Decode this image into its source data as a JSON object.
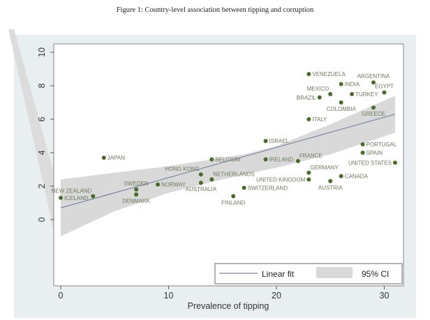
{
  "chart_data": {
    "type": "scatter",
    "title": "Figure 1: Country-level association between tipping and corruption",
    "xlabel": "Prevalence of tipping",
    "ylabel": "",
    "xlim": [
      -0.7,
      31.8
    ],
    "ylim": [
      -4,
      10.5
    ],
    "xticks": [
      0,
      10,
      20,
      30
    ],
    "yticks": [
      0,
      2,
      4,
      6,
      8,
      10
    ],
    "grid": false,
    "legend_position": "bottom-right",
    "legend": [
      {
        "label": "Linear fit",
        "kind": "line"
      },
      {
        "label": "95% CI",
        "kind": "band"
      }
    ],
    "colors": {
      "marker": "#4b6b2a",
      "label": "#6b7a5c",
      "fit": "#5b6a8f",
      "band": "#d9d9d9",
      "background": "#e9eff1"
    },
    "points": [
      {
        "name": "ICELAND",
        "x": 0,
        "y": 1.3,
        "label_position": "right"
      },
      {
        "name": "NEW ZEALAND",
        "x": 3,
        "y": 1.4,
        "label_position": "upper-left"
      },
      {
        "name": "JAPAN",
        "x": 4,
        "y": 3.7,
        "label_position": "right"
      },
      {
        "name": "SWEDEN",
        "x": 7,
        "y": 1.8,
        "label_position": "above"
      },
      {
        "name": "DENMARK",
        "x": 7,
        "y": 1.5,
        "label_position": "below"
      },
      {
        "name": "NORWAY",
        "x": 9,
        "y": 2.1,
        "label_position": "right"
      },
      {
        "name": "HONG KONG",
        "x": 13,
        "y": 2.7,
        "label_position": "upper-left"
      },
      {
        "name": "AUSTRALIA",
        "x": 13,
        "y": 2.2,
        "label_position": "below"
      },
      {
        "name": "NETHERLANDS",
        "x": 14,
        "y": 2.4,
        "label_position": "upper-right"
      },
      {
        "name": "BELGIUM",
        "x": 14,
        "y": 3.6,
        "label_position": "right"
      },
      {
        "name": "FINLAND",
        "x": 16,
        "y": 1.4,
        "label_position": "below"
      },
      {
        "name": "SWITZERLAND",
        "x": 17,
        "y": 1.9,
        "label_position": "right"
      },
      {
        "name": "ISRAEL",
        "x": 19,
        "y": 4.7,
        "label_position": "right"
      },
      {
        "name": "IRELAND",
        "x": 19,
        "y": 3.6,
        "label_position": "right"
      },
      {
        "name": "FRANCE",
        "x": 22,
        "y": 3.5,
        "label_position": "upper-right"
      },
      {
        "name": "VENEZUELA",
        "x": 23,
        "y": 8.7,
        "label_position": "right"
      },
      {
        "name": "ITALY",
        "x": 23,
        "y": 6.0,
        "label_position": "right"
      },
      {
        "name": "GERMANY",
        "x": 23,
        "y": 2.8,
        "label_position": "upper-right"
      },
      {
        "name": "UNITED KINGDOM",
        "x": 23,
        "y": 2.4,
        "label_position": "left"
      },
      {
        "name": "BRAZIL",
        "x": 24,
        "y": 7.3,
        "label_position": "left"
      },
      {
        "name": "MEXICO",
        "x": 25,
        "y": 7.5,
        "label_position": "upper-left"
      },
      {
        "name": "AUSTRIA",
        "x": 25,
        "y": 2.3,
        "label_position": "below"
      },
      {
        "name": "INDIA",
        "x": 26,
        "y": 8.1,
        "label_position": "right"
      },
      {
        "name": "COLOMBIA",
        "x": 26,
        "y": 7.0,
        "label_position": "below"
      },
      {
        "name": "CANADA",
        "x": 26,
        "y": 2.6,
        "label_position": "right"
      },
      {
        "name": "TURKEY",
        "x": 27,
        "y": 7.5,
        "label_position": "right"
      },
      {
        "name": "PORTUGAL",
        "x": 28,
        "y": 4.5,
        "label_position": "right"
      },
      {
        "name": "SPAIN",
        "x": 28,
        "y": 4.0,
        "label_position": "right"
      },
      {
        "name": "ARGENTINA",
        "x": 29,
        "y": 8.2,
        "label_position": "above"
      },
      {
        "name": "GREECE",
        "x": 29,
        "y": 6.7,
        "label_position": "below"
      },
      {
        "name": "EGYPT",
        "x": 30,
        "y": 7.6,
        "label_position": "above"
      },
      {
        "name": "UNITED STATES",
        "x": 31,
        "y": 3.4,
        "label_position": "left"
      }
    ],
    "fit": {
      "x": [
        0,
        31
      ],
      "y": [
        0.7,
        6.3
      ]
    },
    "ci_band": {
      "x": [
        0,
        5,
        10,
        15,
        17,
        20,
        25,
        31
      ],
      "lower": [
        -1.0,
        0.5,
        1.6,
        2.4,
        2.7,
        3.1,
        3.9,
        5.2
      ],
      "upper": [
        2.4,
        2.8,
        3.2,
        3.7,
        3.9,
        4.4,
        5.7,
        7.4
      ]
    }
  }
}
